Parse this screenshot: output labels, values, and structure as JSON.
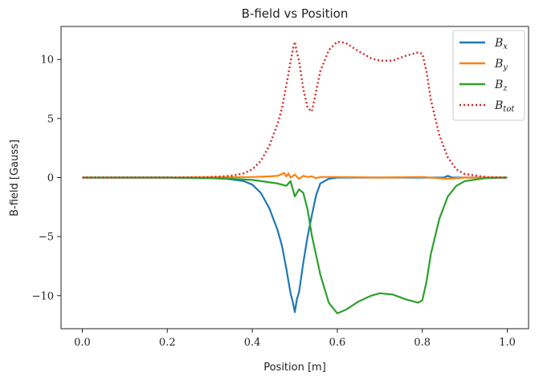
{
  "chart_data": {
    "type": "line",
    "title": "B-field vs Position",
    "xlabel": "Position [m]",
    "ylabel": "B-field [Gauss]",
    "xlim": [
      -0.05,
      1.05
    ],
    "ylim": [
      -12.8,
      12.8
    ],
    "xticks": [
      0.0,
      0.2,
      0.4,
      0.6,
      0.8,
      1.0
    ],
    "xtick_labels": [
      "0.0",
      "0.2",
      "0.4",
      "0.6",
      "0.8",
      "1.0"
    ],
    "yticks": [
      -10,
      -5,
      0,
      5,
      10
    ],
    "ytick_labels": [
      "−10",
      "−5",
      "0",
      "5",
      "10"
    ],
    "grid": false,
    "legend_position": "top-right",
    "series": [
      {
        "name": "B",
        "subscript": "x",
        "color": "#1f77b4",
        "style": "solid",
        "x": [
          0.0,
          0.1,
          0.2,
          0.3,
          0.34,
          0.38,
          0.4,
          0.42,
          0.44,
          0.46,
          0.47,
          0.48,
          0.49,
          0.495,
          0.5,
          0.505,
          0.51,
          0.52,
          0.53,
          0.54,
          0.55,
          0.56,
          0.58,
          0.6,
          0.65,
          0.7,
          0.8,
          0.85,
          0.86,
          0.87,
          0.9,
          1.0
        ],
        "y": [
          0.0,
          0.0,
          0.0,
          -0.05,
          -0.1,
          -0.3,
          -0.6,
          -1.3,
          -2.6,
          -4.5,
          -5.8,
          -7.7,
          -9.8,
          -10.5,
          -11.4,
          -10.3,
          -9.7,
          -7.2,
          -5.0,
          -3.2,
          -1.5,
          -0.5,
          -0.1,
          0.0,
          0.0,
          0.0,
          0.0,
          0.0,
          0.15,
          0.0,
          0.0,
          0.0
        ]
      },
      {
        "name": "B",
        "subscript": "y",
        "color": "#ff7f0e",
        "style": "solid",
        "x": [
          0.0,
          0.2,
          0.4,
          0.44,
          0.46,
          0.47,
          0.475,
          0.48,
          0.485,
          0.49,
          0.5,
          0.51,
          0.52,
          0.53,
          0.54,
          0.55,
          0.56,
          0.6,
          0.7,
          0.8,
          0.86,
          0.9,
          1.0
        ],
        "y": [
          0.0,
          0.0,
          0.05,
          0.1,
          0.15,
          0.3,
          0.4,
          0.1,
          0.35,
          0.0,
          0.25,
          -0.1,
          0.15,
          0.05,
          0.1,
          -0.05,
          0.05,
          0.05,
          0.0,
          0.05,
          -0.1,
          0.0,
          0.0
        ]
      },
      {
        "name": "B",
        "subscript": "z",
        "color": "#2ca02c",
        "style": "solid",
        "x": [
          0.0,
          0.2,
          0.3,
          0.35,
          0.4,
          0.42,
          0.44,
          0.46,
          0.48,
          0.49,
          0.5,
          0.51,
          0.52,
          0.53,
          0.54,
          0.56,
          0.58,
          0.6,
          0.62,
          0.65,
          0.68,
          0.7,
          0.73,
          0.76,
          0.79,
          0.8,
          0.81,
          0.82,
          0.84,
          0.86,
          0.88,
          0.9,
          0.95,
          1.0
        ],
        "y": [
          0.0,
          0.0,
          -0.05,
          -0.1,
          -0.2,
          -0.3,
          -0.4,
          -0.5,
          -0.7,
          -0.3,
          -1.6,
          -1.0,
          -1.3,
          -2.7,
          -4.9,
          -8.2,
          -10.6,
          -11.5,
          -11.2,
          -10.5,
          -10.0,
          -9.8,
          -9.9,
          -10.3,
          -10.6,
          -10.4,
          -8.8,
          -6.5,
          -3.5,
          -1.6,
          -0.7,
          -0.3,
          -0.05,
          0.0
        ]
      },
      {
        "name": "B",
        "subscript": "tot",
        "color": "#d62728",
        "style": "dotted",
        "x": [
          0.0,
          0.2,
          0.3,
          0.35,
          0.38,
          0.4,
          0.42,
          0.44,
          0.46,
          0.47,
          0.48,
          0.49,
          0.495,
          0.5,
          0.505,
          0.51,
          0.52,
          0.53,
          0.54,
          0.55,
          0.56,
          0.58,
          0.6,
          0.62,
          0.65,
          0.68,
          0.7,
          0.73,
          0.76,
          0.79,
          0.8,
          0.81,
          0.82,
          0.84,
          0.86,
          0.88,
          0.9,
          0.95,
          1.0
        ],
        "y": [
          0.0,
          0.0,
          0.05,
          0.15,
          0.35,
          0.7,
          1.4,
          2.7,
          4.6,
          5.9,
          7.8,
          9.8,
          10.8,
          11.5,
          10.6,
          9.9,
          7.5,
          5.9,
          5.6,
          7.3,
          9.0,
          10.8,
          11.5,
          11.4,
          10.7,
          10.1,
          9.9,
          9.9,
          10.3,
          10.6,
          10.5,
          9.0,
          6.6,
          3.6,
          1.7,
          0.7,
          0.3,
          0.05,
          0.0
        ]
      }
    ]
  }
}
